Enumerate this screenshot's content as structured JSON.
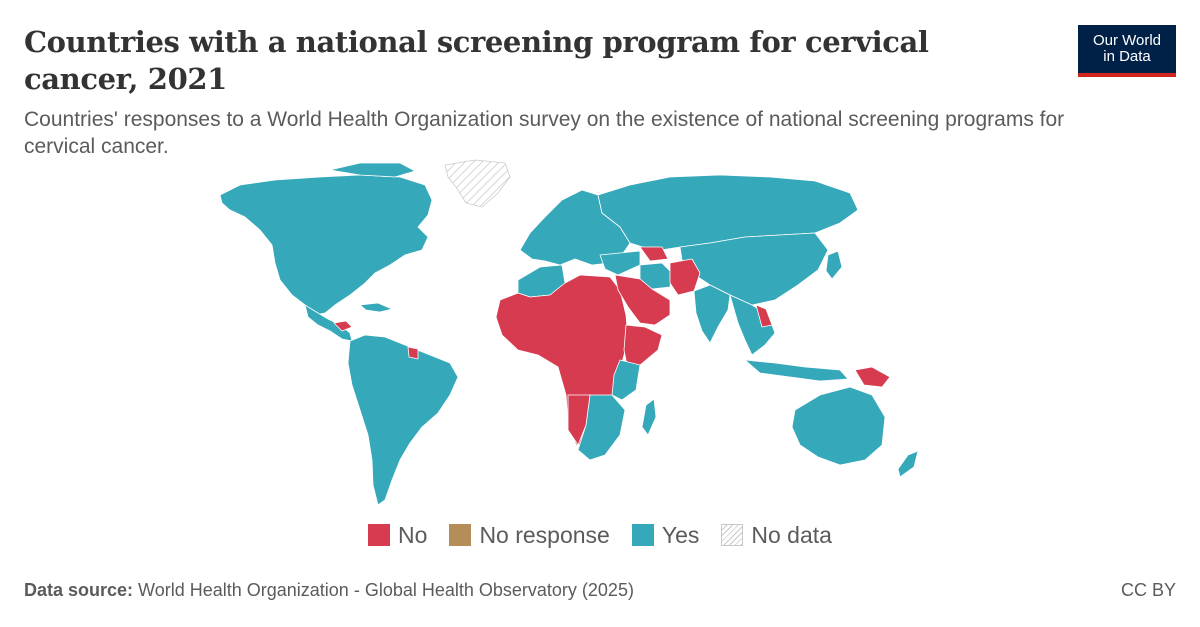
{
  "header": {
    "title": "Countries with a national screening program for cervical cancer, 2021",
    "subtitle": "Countries' responses to a World Health Organization survey on the existence of national screening programs for cervical cancer."
  },
  "logo": {
    "line1": "Our World",
    "line2": "in Data"
  },
  "colors": {
    "no": "#d73b50",
    "no_response": "#b58d59",
    "yes": "#35a8ba",
    "no_data": "#ffffff",
    "border": "#ffffff"
  },
  "legend": {
    "items": [
      {
        "label": "No",
        "key": "no"
      },
      {
        "label": "No response",
        "key": "no_response"
      },
      {
        "label": "Yes",
        "key": "yes"
      },
      {
        "label": "No data",
        "key": "no_data"
      }
    ]
  },
  "footer": {
    "source_label": "Data source:",
    "source_text": " World Health Organization - Global Health Observatory (2025)",
    "license": "CC BY"
  },
  "map": {
    "regions": [
      {
        "name": "north-america",
        "status": "yes"
      },
      {
        "name": "greenland",
        "status": "no_data"
      },
      {
        "name": "central-america",
        "status": "yes"
      },
      {
        "name": "honduras",
        "status": "no"
      },
      {
        "name": "caribbean-islands",
        "status": "yes"
      },
      {
        "name": "suriname",
        "status": "no"
      },
      {
        "name": "south-america",
        "status": "yes"
      },
      {
        "name": "europe",
        "status": "yes"
      },
      {
        "name": "russia-north-asia",
        "status": "yes"
      },
      {
        "name": "east-asia",
        "status": "yes"
      },
      {
        "name": "south-asia",
        "status": "yes"
      },
      {
        "name": "southeast-asia",
        "status": "yes"
      },
      {
        "name": "laos",
        "status": "no"
      },
      {
        "name": "indonesia",
        "status": "yes"
      },
      {
        "name": "papua-new-guinea",
        "status": "no"
      },
      {
        "name": "australia",
        "status": "yes"
      },
      {
        "name": "new-zealand",
        "status": "yes"
      },
      {
        "name": "north-africa-west",
        "status": "yes"
      },
      {
        "name": "sahara-sahel-west-central-africa",
        "status": "no"
      },
      {
        "name": "east-africa-horn",
        "status": "no"
      },
      {
        "name": "kenya-tanzania",
        "status": "yes"
      },
      {
        "name": "southern-africa",
        "status": "yes"
      },
      {
        "name": "angola-namibia",
        "status": "no"
      },
      {
        "name": "madagascar",
        "status": "yes"
      },
      {
        "name": "arabian-peninsula",
        "status": "no"
      },
      {
        "name": "middle-east-levant",
        "status": "yes"
      },
      {
        "name": "caucasus-central-asia-west",
        "status": "no"
      },
      {
        "name": "afghanistan-pakistan",
        "status": "no"
      },
      {
        "name": "iran",
        "status": "yes"
      }
    ]
  }
}
